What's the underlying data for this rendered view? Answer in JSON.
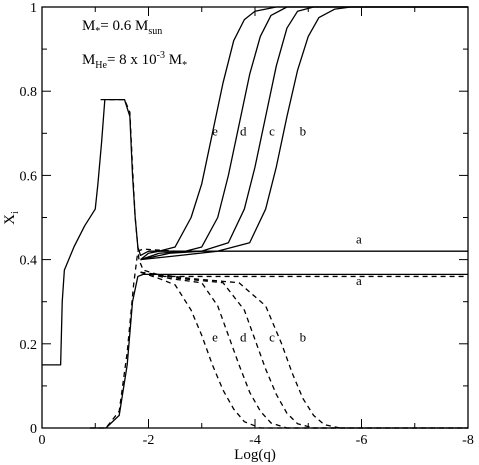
{
  "chart_data": {
    "type": "line",
    "xlabel": "Log(q)",
    "ylabel": "X",
    "ylabel_sub": "i",
    "xlim": [
      0,
      -8
    ],
    "ylim": [
      0,
      1
    ],
    "x_ticks": [
      0,
      -2,
      -4,
      -6,
      -8
    ],
    "x_tick_labels": [
      "0",
      "-2",
      "-4",
      "-6",
      "-8"
    ],
    "y_ticks": [
      0,
      0.2,
      0.4,
      0.6,
      0.8,
      1
    ],
    "y_tick_labels": [
      "0",
      "0.2",
      "0.4",
      "0.6",
      "0.8",
      "1"
    ],
    "annotations": [
      {
        "id": "mass",
        "parts": [
          {
            "t": "M"
          },
          {
            "t": "*",
            "sub": true
          },
          {
            "t": "= 0.6 M"
          },
          {
            "t": "sun",
            "sub": true
          }
        ],
        "pos": [
          -0.75,
          0.945
        ]
      },
      {
        "id": "mhe",
        "parts": [
          {
            "t": "M"
          },
          {
            "t": "He",
            "sub": true
          },
          {
            "t": "= 8 x 10"
          },
          {
            "t": "-3",
            "sup": true
          },
          {
            "t": " M"
          },
          {
            "t": "*",
            "sub": true
          }
        ],
        "pos": [
          -0.75,
          0.865
        ]
      }
    ],
    "series": [
      {
        "style": "solid",
        "points": [
          [
            0,
            0.15
          ],
          [
            -0.35,
            0.15
          ],
          [
            -0.38,
            0.3
          ],
          [
            -0.42,
            0.375
          ],
          [
            -0.6,
            0.43
          ],
          [
            -0.8,
            0.48
          ],
          [
            -0.95,
            0.51
          ],
          [
            -1.0,
            0.52
          ],
          [
            -1.05,
            0.58
          ],
          [
            -1.12,
            0.68
          ],
          [
            -1.18,
            0.78
          ],
          [
            -1.55,
            0.78
          ],
          [
            -1.65,
            0.74
          ],
          [
            -1.7,
            0.6
          ],
          [
            -1.75,
            0.5
          ],
          [
            -1.8,
            0.43
          ],
          [
            -1.85,
            0.41
          ],
          [
            -2.0,
            0.42
          ],
          [
            -3.0,
            0.42
          ],
          [
            -8.0,
            0.42
          ]
        ]
      },
      {
        "style": "dashed",
        "points": [
          [
            -1.1,
            0.78
          ],
          [
            -1.55,
            0.78
          ],
          [
            -1.65,
            0.75
          ],
          [
            -1.7,
            0.62
          ],
          [
            -1.75,
            0.5
          ],
          [
            -1.82,
            0.4
          ],
          [
            -1.9,
            0.375
          ],
          [
            -2.3,
            0.36
          ],
          [
            -8.0,
            0.36
          ]
        ]
      },
      {
        "style": "solid",
        "points": [
          [
            -0.9,
            0.0
          ],
          [
            -1.2,
            0.0
          ],
          [
            -1.45,
            0.03
          ],
          [
            -1.6,
            0.15
          ],
          [
            -1.7,
            0.3
          ],
          [
            -1.8,
            0.36
          ],
          [
            -1.9,
            0.365
          ],
          [
            -2.5,
            0.365
          ],
          [
            -8.0,
            0.365
          ]
        ]
      },
      {
        "style": "dashed",
        "points": [
          [
            -0.9,
            0.0
          ],
          [
            -1.2,
            0.0
          ],
          [
            -1.45,
            0.04
          ],
          [
            -1.6,
            0.18
          ],
          [
            -1.72,
            0.34
          ],
          [
            -1.8,
            0.42
          ],
          [
            -1.9,
            0.425
          ],
          [
            -2.5,
            0.42
          ]
        ]
      },
      {
        "style": "solid",
        "points": [
          [
            -1.85,
            0.4
          ],
          [
            -2.0,
            0.415
          ],
          [
            -2.2,
            0.42
          ],
          [
            -2.5,
            0.43
          ],
          [
            -2.8,
            0.5
          ],
          [
            -3.0,
            0.58
          ],
          [
            -3.2,
            0.7
          ],
          [
            -3.4,
            0.82
          ],
          [
            -3.6,
            0.92
          ],
          [
            -3.8,
            0.97
          ],
          [
            -4.0,
            0.99
          ],
          [
            -4.4,
            1.0
          ],
          [
            -8.0,
            1.0
          ]
        ]
      },
      {
        "style": "solid",
        "points": [
          [
            -1.85,
            0.4
          ],
          [
            -2.2,
            0.415
          ],
          [
            -2.7,
            0.42
          ],
          [
            -3.0,
            0.43
          ],
          [
            -3.3,
            0.5
          ],
          [
            -3.5,
            0.6
          ],
          [
            -3.7,
            0.72
          ],
          [
            -3.9,
            0.84
          ],
          [
            -4.1,
            0.93
          ],
          [
            -4.3,
            0.98
          ],
          [
            -4.6,
            1.0
          ],
          [
            -8.0,
            1.0
          ]
        ]
      },
      {
        "style": "solid",
        "points": [
          [
            -1.85,
            0.4
          ],
          [
            -2.4,
            0.415
          ],
          [
            -3.0,
            0.42
          ],
          [
            -3.5,
            0.44
          ],
          [
            -3.8,
            0.52
          ],
          [
            -4.0,
            0.62
          ],
          [
            -4.2,
            0.74
          ],
          [
            -4.4,
            0.86
          ],
          [
            -4.6,
            0.95
          ],
          [
            -4.8,
            0.99
          ],
          [
            -5.1,
            1.0
          ],
          [
            -8.0,
            1.0
          ]
        ]
      },
      {
        "style": "solid",
        "points": [
          [
            -1.85,
            0.4
          ],
          [
            -2.6,
            0.41
          ],
          [
            -3.3,
            0.42
          ],
          [
            -3.9,
            0.44
          ],
          [
            -4.2,
            0.52
          ],
          [
            -4.4,
            0.62
          ],
          [
            -4.6,
            0.74
          ],
          [
            -4.8,
            0.85
          ],
          [
            -5.0,
            0.93
          ],
          [
            -5.2,
            0.975
          ],
          [
            -5.5,
            0.995
          ],
          [
            -5.8,
            1.0
          ],
          [
            -8.0,
            1.0
          ]
        ]
      },
      {
        "style": "dashed",
        "points": [
          [
            -1.85,
            0.37
          ],
          [
            -2.2,
            0.355
          ],
          [
            -2.5,
            0.34
          ],
          [
            -2.8,
            0.28
          ],
          [
            -3.0,
            0.22
          ],
          [
            -3.2,
            0.15
          ],
          [
            -3.4,
            0.09
          ],
          [
            -3.6,
            0.045
          ],
          [
            -3.8,
            0.015
          ],
          [
            -4.1,
            0.0
          ],
          [
            -8.0,
            0.0
          ]
        ]
      },
      {
        "style": "dashed",
        "points": [
          [
            -1.85,
            0.37
          ],
          [
            -2.4,
            0.355
          ],
          [
            -3.0,
            0.345
          ],
          [
            -3.3,
            0.29
          ],
          [
            -3.5,
            0.22
          ],
          [
            -3.7,
            0.15
          ],
          [
            -3.9,
            0.085
          ],
          [
            -4.1,
            0.04
          ],
          [
            -4.3,
            0.012
          ],
          [
            -4.6,
            0.0
          ],
          [
            -8.0,
            0.0
          ]
        ]
      },
      {
        "style": "dashed",
        "points": [
          [
            -1.85,
            0.37
          ],
          [
            -2.6,
            0.355
          ],
          [
            -3.4,
            0.345
          ],
          [
            -3.8,
            0.28
          ],
          [
            -4.0,
            0.21
          ],
          [
            -4.2,
            0.14
          ],
          [
            -4.4,
            0.08
          ],
          [
            -4.6,
            0.035
          ],
          [
            -4.8,
            0.01
          ],
          [
            -5.1,
            0.0
          ],
          [
            -8.0,
            0.0
          ]
        ]
      },
      {
        "style": "dashed",
        "points": [
          [
            -1.85,
            0.37
          ],
          [
            -2.8,
            0.355
          ],
          [
            -3.7,
            0.345
          ],
          [
            -4.2,
            0.29
          ],
          [
            -4.5,
            0.2
          ],
          [
            -4.7,
            0.13
          ],
          [
            -4.9,
            0.07
          ],
          [
            -5.1,
            0.03
          ],
          [
            -5.3,
            0.008
          ],
          [
            -5.6,
            0.0
          ],
          [
            -8.0,
            0.0
          ]
        ]
      }
    ],
    "curve_labels": [
      {
        "text": "e",
        "x": -3.25,
        "y": 0.695
      },
      {
        "text": "d",
        "x": -3.78,
        "y": 0.695
      },
      {
        "text": "c",
        "x": -4.32,
        "y": 0.695
      },
      {
        "text": "b",
        "x": -4.9,
        "y": 0.695
      },
      {
        "text": "a",
        "x": -5.95,
        "y": 0.438
      },
      {
        "text": "a",
        "x": -5.95,
        "y": 0.34
      },
      {
        "text": "e",
        "x": -3.25,
        "y": 0.205
      },
      {
        "text": "d",
        "x": -3.78,
        "y": 0.205
      },
      {
        "text": "c",
        "x": -4.32,
        "y": 0.205
      },
      {
        "text": "b",
        "x": -4.9,
        "y": 0.205
      }
    ]
  }
}
